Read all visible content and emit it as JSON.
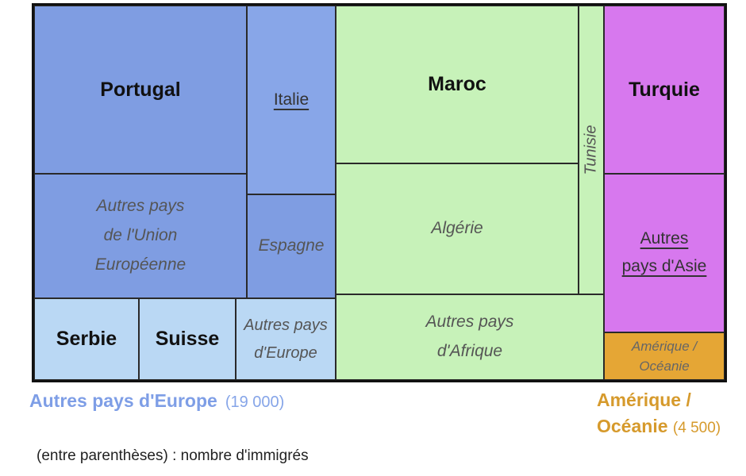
{
  "chart_data": {
    "type": "treemap",
    "title": "",
    "colors": {
      "europe_union": "#7f9de2",
      "europe_other": "#bad8f4",
      "afrique": "#c7f2b9",
      "asie": "#d778ee",
      "amerique_oceanie": "#e5a635"
    },
    "cells": [
      {
        "id": "portugal",
        "label": "Portugal",
        "group": "europe_union",
        "style": "bold"
      },
      {
        "id": "italie",
        "label": "Italie",
        "group": "europe_union",
        "style": "underlined"
      },
      {
        "id": "autres-ue",
        "label_lines": [
          "Autres pays",
          "de l'Union",
          "Européenne"
        ],
        "group": "europe_union",
        "style": "italic"
      },
      {
        "id": "espagne",
        "label": "Espagne",
        "group": "europe_union",
        "style": "italic"
      },
      {
        "id": "serbie",
        "label": "Serbie",
        "group": "europe_other",
        "style": "bold"
      },
      {
        "id": "suisse",
        "label": "Suisse",
        "group": "europe_other",
        "style": "bold"
      },
      {
        "id": "autres-europe",
        "label_lines": [
          "Autres pays",
          "d'Europe"
        ],
        "group": "europe_other",
        "style": "italic"
      },
      {
        "id": "maroc",
        "label": "Maroc",
        "group": "afrique",
        "style": "bold"
      },
      {
        "id": "algerie",
        "label": "Algérie",
        "group": "afrique",
        "style": "italic"
      },
      {
        "id": "tunisie",
        "label": "Tunisie",
        "group": "afrique",
        "style": "vertical"
      },
      {
        "id": "autres-afrique",
        "label_lines": [
          "Autres pays",
          "d'Afrique"
        ],
        "group": "afrique",
        "style": "italic"
      },
      {
        "id": "turquie",
        "label": "Turquie",
        "group": "asie",
        "style": "bold"
      },
      {
        "id": "autres-asie",
        "label_lines": [
          "Autres",
          "pays d'Asie"
        ],
        "group": "asie",
        "style": "underlined"
      },
      {
        "id": "amerique-oceanie",
        "label_lines": [
          "Amérique /",
          "Océanie"
        ],
        "group": "amerique_oceanie",
        "style": "italic-small"
      }
    ],
    "legend": {
      "europe": {
        "label": "Autres pays d'Europe",
        "value": "(19 000)"
      },
      "amerique": {
        "label_lines": [
          "Amérique /",
          "Océanie"
        ],
        "value": "(4 500)"
      }
    },
    "note": "(entre parenthèses) : nombre d'immigrés"
  }
}
